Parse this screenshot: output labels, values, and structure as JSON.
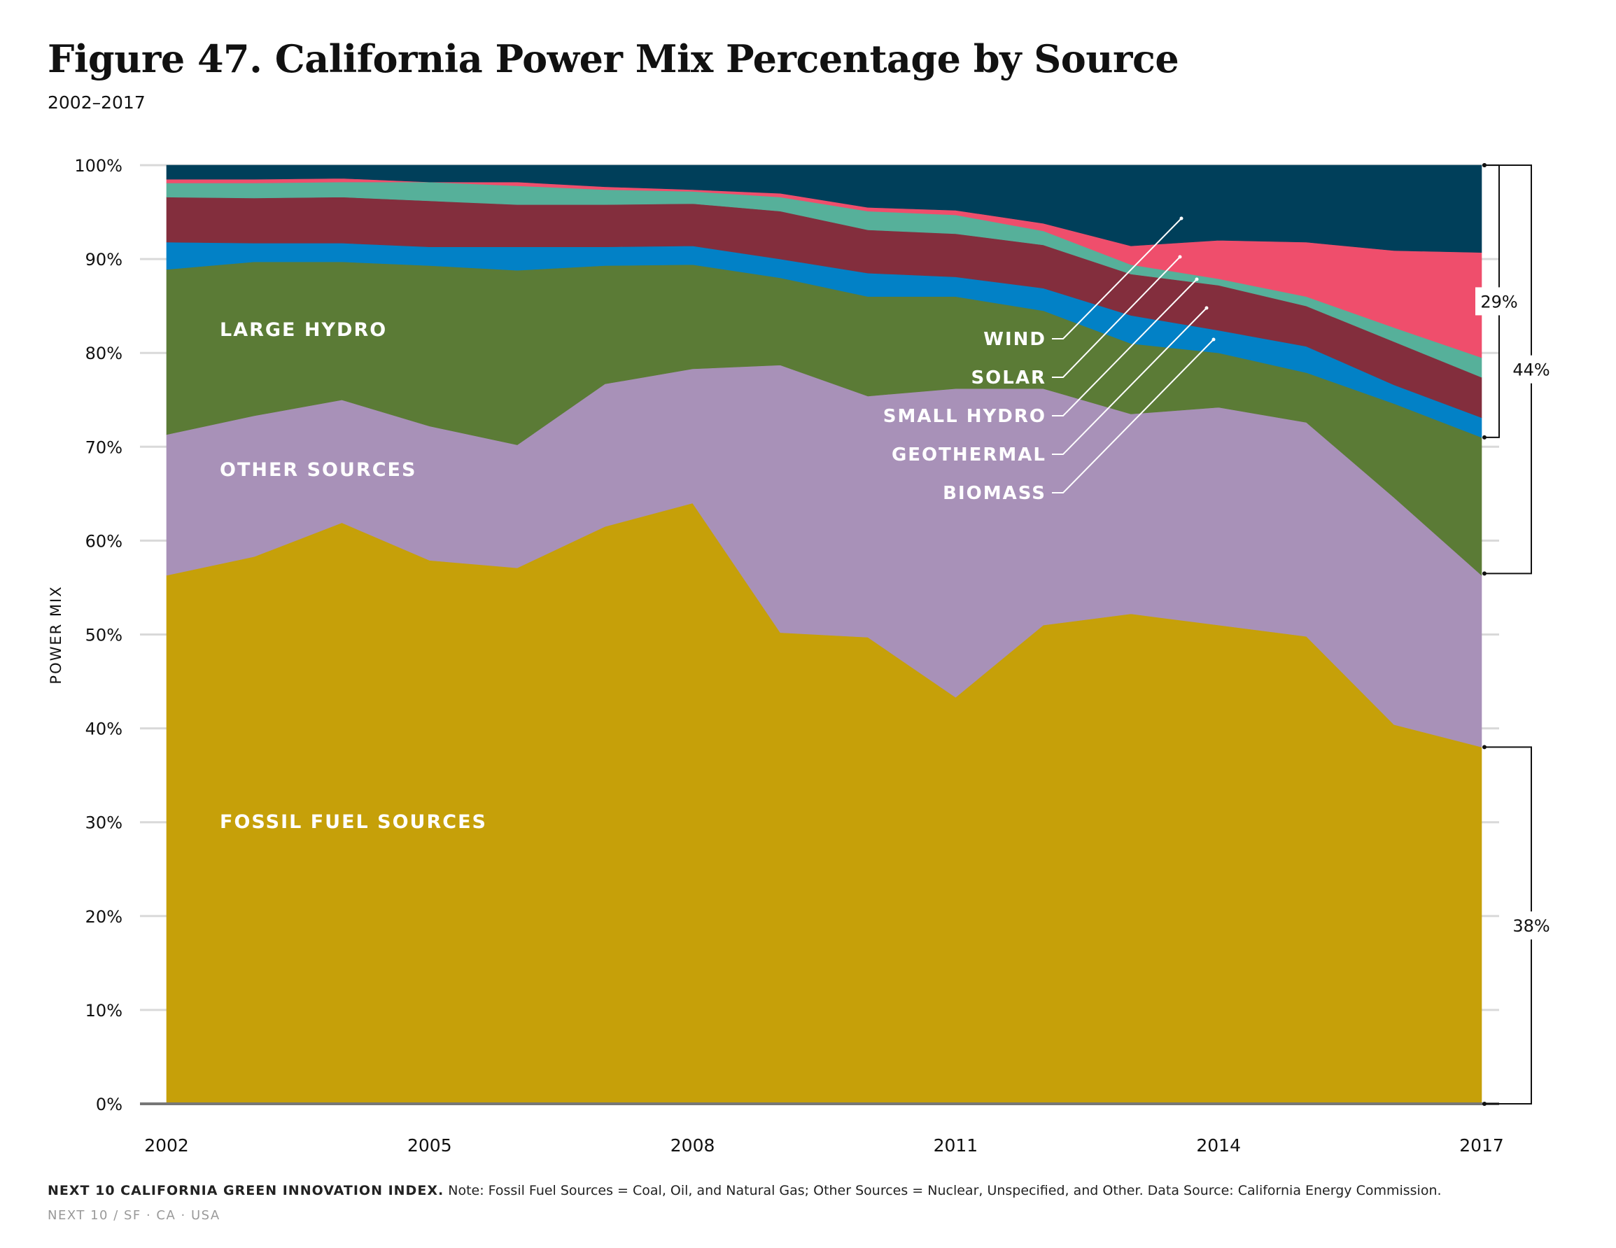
{
  "title": "Figure 47. California Power Mix Percentage by Source",
  "subtitle": "2002–2017",
  "footer": {
    "source_org": "NEXT 10 CALIFORNIA GREEN INNOVATION INDEX.",
    "note": "Note: Fossil Fuel Sources = Coal, Oil, and Natural Gas; Other Sources = Nuclear, Unspecified, and Other. Data Source: California Energy Commission.",
    "org_line": "NEXT 10  /  SF · CA · USA"
  },
  "chart_data": {
    "type": "area",
    "stacked": true,
    "title": "Figure 47. California Power Mix Percentage by Source",
    "subtitle": "2002–2017",
    "ylabel": "POWER MIX",
    "xlabel": "",
    "ylim": [
      0,
      100
    ],
    "yticks": [
      0,
      10,
      20,
      30,
      40,
      50,
      60,
      70,
      80,
      90,
      100
    ],
    "ytick_labels": [
      "0%",
      "10%",
      "20%",
      "30%",
      "40%",
      "50%",
      "60%",
      "70%",
      "80%",
      "90%",
      "100%"
    ],
    "x": [
      2002,
      2003,
      2004,
      2005,
      2006,
      2007,
      2008,
      2009,
      2010,
      2011,
      2012,
      2013,
      2014,
      2015,
      2016,
      2017
    ],
    "xticks": [
      2002,
      2005,
      2008,
      2011,
      2014,
      2017
    ],
    "xtick_labels": [
      "2002",
      "2005",
      "2008",
      "2011",
      "2014",
      "2017"
    ],
    "grid": "horizontal",
    "series": [
      {
        "name": "FOSSIL FUEL SOURCES",
        "color": "#C6A009",
        "values": [
          56.3,
          58.3,
          61.9,
          57.9,
          57.1,
          61.5,
          64.0,
          50.2,
          49.7,
          43.3,
          51.0,
          52.2,
          51.0,
          49.8,
          40.4,
          38.0
        ]
      },
      {
        "name": "OTHER SOURCES",
        "color": "#A891B8",
        "values": [
          15.0,
          15.0,
          13.1,
          14.3,
          13.1,
          15.2,
          14.3,
          28.5,
          25.7,
          32.9,
          25.2,
          21.3,
          23.2,
          22.8,
          24.2,
          18.3
        ]
      },
      {
        "name": "LARGE HYDRO",
        "color": "#5B7B36",
        "values": [
          17.6,
          16.4,
          14.7,
          17.1,
          18.6,
          12.6,
          11.1,
          9.3,
          10.6,
          9.8,
          8.3,
          7.5,
          5.8,
          5.3,
          10.0,
          14.7
        ]
      },
      {
        "name": "SMALL HYDRO",
        "color": "#0281C6",
        "values": [
          2.9,
          2.0,
          2.0,
          2.0,
          2.5,
          2.0,
          2.0,
          2.0,
          2.5,
          2.1,
          2.4,
          3.0,
          2.4,
          2.8,
          2.0,
          2.1
        ]
      },
      {
        "name": "GEOTHERMAL",
        "color": "#832E3D",
        "values": [
          4.8,
          4.8,
          4.9,
          4.9,
          4.5,
          4.5,
          4.5,
          5.1,
          4.6,
          4.6,
          4.6,
          4.4,
          4.8,
          4.3,
          4.6,
          4.3
        ]
      },
      {
        "name": "BIOMASS",
        "color": "#56B09A",
        "values": [
          1.5,
          1.6,
          1.6,
          2.0,
          2.0,
          1.6,
          1.3,
          1.5,
          2.0,
          2.0,
          1.5,
          1.0,
          0.7,
          1.0,
          1.5,
          2.1
        ]
      },
      {
        "name": "SOLAR",
        "color": "#EF4E6C",
        "values": [
          0.4,
          0.4,
          0.4,
          0.0,
          0.4,
          0.3,
          0.2,
          0.4,
          0.4,
          0.5,
          0.8,
          2.0,
          4.1,
          5.8,
          8.2,
          11.2
        ]
      },
      {
        "name": "WIND",
        "color": "#003F5A",
        "values": [
          1.5,
          1.5,
          1.4,
          1.8,
          1.8,
          2.3,
          2.6,
          3.0,
          4.5,
          4.8,
          6.2,
          8.6,
          8.0,
          8.2,
          9.1,
          9.3
        ]
      }
    ],
    "area_labels": {
      "large_hydro": "LARGE HYDRO",
      "other_sources": "OTHER SOURCES",
      "fossil_fuel": "FOSSIL FUEL SOURCES"
    },
    "callout_labels": [
      "WIND",
      "SOLAR",
      "SMALL HYDRO",
      "GEOTHERMAL",
      "BIOMASS"
    ],
    "brackets": [
      {
        "label": "29%",
        "from": 71,
        "to": 100
      },
      {
        "label": "44%",
        "from": 56.5,
        "to": 100
      },
      {
        "label": "38%",
        "from": 0,
        "to": 38
      }
    ]
  }
}
